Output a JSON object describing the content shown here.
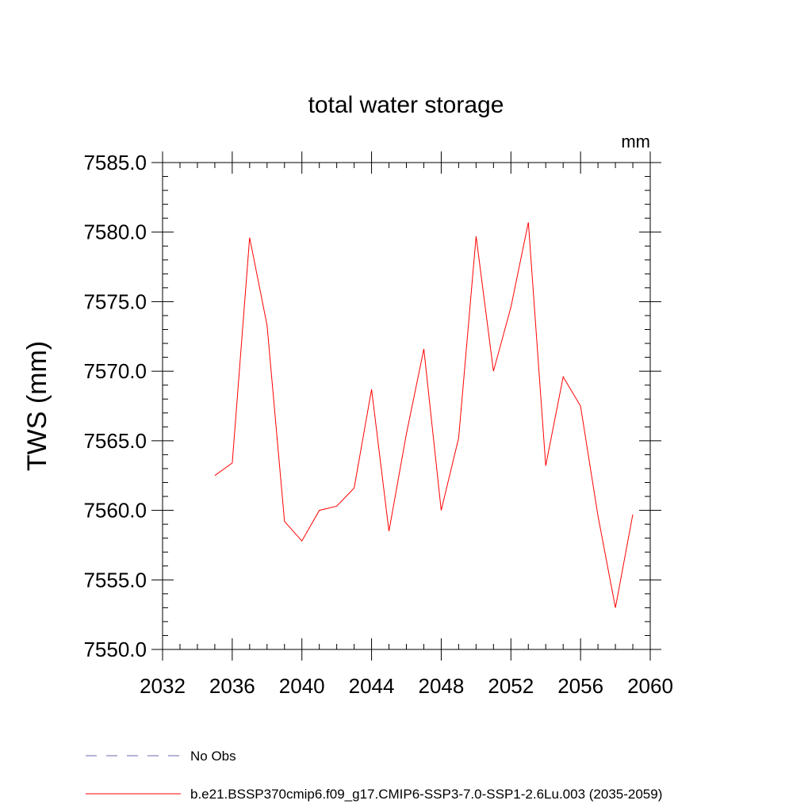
{
  "chart_data": {
    "type": "line",
    "title": "total water storage",
    "units_label": "mm",
    "xlabel": "",
    "ylabel": "TWS  (mm)",
    "xlim": [
      2032,
      2060
    ],
    "ylim": [
      7550.0,
      7585.0
    ],
    "x_ticks": [
      2032,
      2036,
      2040,
      2044,
      2048,
      2052,
      2056,
      2060
    ],
    "x_tick_labels": [
      "2032",
      "2036",
      "2040",
      "2044",
      "2048",
      "2052",
      "2056",
      "2060"
    ],
    "y_ticks": [
      7550.0,
      7555.0,
      7560.0,
      7565.0,
      7570.0,
      7575.0,
      7580.0,
      7585.0
    ],
    "y_tick_labels": [
      "7550.0",
      "7555.0",
      "7560.0",
      "7565.0",
      "7570.0",
      "7575.0",
      "7580.0",
      "7585.0"
    ],
    "grid": false,
    "legend_position": "bottom",
    "series": [
      {
        "name": "b.e21.BSSP370cmip6.f09_g17.CMIP6-SSP3-7.0-SSP1-2.6Lu.003 (2035-2059)",
        "color": "#ff0000",
        "style": "solid",
        "x": [
          2035,
          2036,
          2037,
          2038,
          2039,
          2040,
          2041,
          2042,
          2043,
          2044,
          2045,
          2046,
          2047,
          2048,
          2049,
          2050,
          2051,
          2052,
          2053,
          2054,
          2055,
          2056,
          2057,
          2058,
          2059
        ],
        "values": [
          7562.5,
          7563.4,
          7579.6,
          7573.3,
          7559.2,
          7557.8,
          7560.0,
          7560.3,
          7561.6,
          7568.7,
          7558.5,
          7565.5,
          7571.6,
          7560.0,
          7565.2,
          7579.7,
          7570.0,
          7574.6,
          7580.7,
          7563.2,
          7569.6,
          7567.5,
          7559.6,
          7553.0,
          7559.7
        ]
      }
    ],
    "legend": [
      {
        "label": "No Obs",
        "color": "#6a6ab0",
        "style": "dashed"
      },
      {
        "label": "b.e21.BSSP370cmip6.f09_g17.CMIP6-SSP3-7.0-SSP1-2.6Lu.003 (2035-2059)",
        "color": "#ff0000",
        "style": "solid"
      }
    ]
  }
}
